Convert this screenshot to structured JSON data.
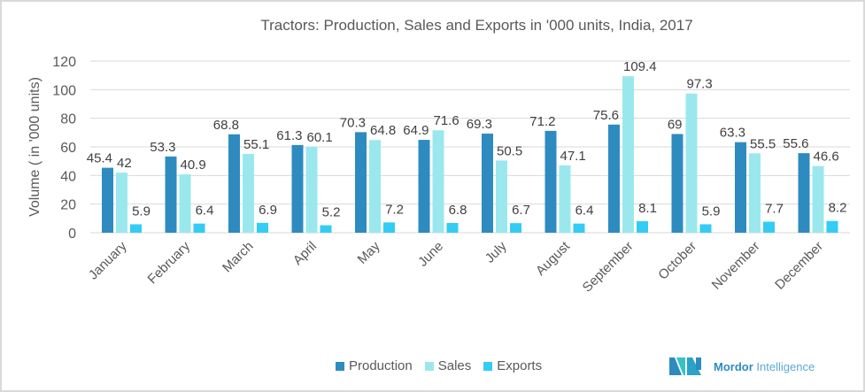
{
  "chart_data": {
    "type": "bar",
    "title": "Tractors: Production, Sales and Exports in '000 units, India, 2017",
    "xlabel": "",
    "ylabel": "Volume ( in '000 units)",
    "ylim": [
      0,
      120
    ],
    "yticks": [
      0,
      20,
      40,
      60,
      80,
      100,
      120
    ],
    "grid": true,
    "legend_position": "bottom",
    "categories": [
      "January",
      "February",
      "March",
      "April",
      "May",
      "June",
      "July",
      "August",
      "September",
      "October",
      "November",
      "December"
    ],
    "series": [
      {
        "name": "Production",
        "color": "#2E8BC0",
        "values": [
          45.4,
          53.3,
          68.8,
          61.3,
          70.3,
          64.9,
          69.3,
          71.2,
          75.6,
          69,
          63.3,
          55.6
        ]
      },
      {
        "name": "Sales",
        "color": "#9AE8EE",
        "values": [
          42,
          40.9,
          55.1,
          60.1,
          64.8,
          71.6,
          50.5,
          47.1,
          109.4,
          97.3,
          55.5,
          46.6
        ]
      },
      {
        "name": "Exports",
        "color": "#33CCF5",
        "values": [
          5.9,
          6.4,
          6.9,
          5.2,
          7.2,
          6.8,
          6.7,
          6.4,
          8.1,
          5.9,
          7.7,
          8.2
        ]
      }
    ]
  },
  "branding": {
    "logo_bold": "Mordor",
    "logo_light": "Intelligence"
  }
}
